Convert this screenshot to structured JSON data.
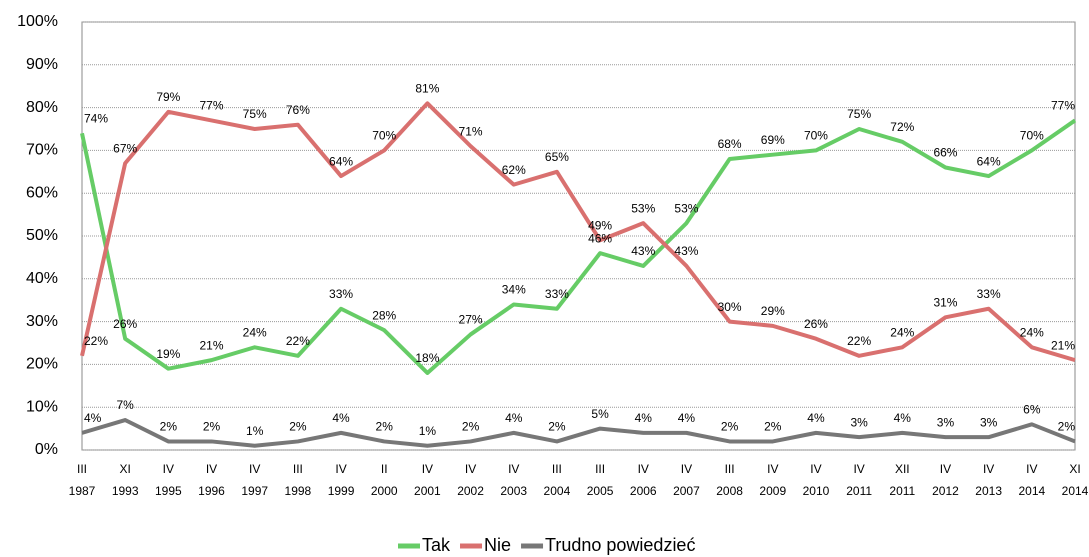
{
  "chart_data": {
    "type": "line",
    "categories": [
      [
        "III",
        "1987"
      ],
      [
        "XI",
        "1993"
      ],
      [
        "IV",
        "1995"
      ],
      [
        "IV",
        "1996"
      ],
      [
        "IV",
        "1997"
      ],
      [
        "III",
        "1998"
      ],
      [
        "IV",
        "1999"
      ],
      [
        "II",
        "2000"
      ],
      [
        "IV",
        "2001"
      ],
      [
        "IV",
        "2002"
      ],
      [
        "IV",
        "2003"
      ],
      [
        "III",
        "2004"
      ],
      [
        "III",
        "2005"
      ],
      [
        "IV",
        "2006"
      ],
      [
        "IV",
        "2007"
      ],
      [
        "III",
        "2008"
      ],
      [
        "IV",
        "2009"
      ],
      [
        "IV",
        "2010"
      ],
      [
        "IV",
        "2011"
      ],
      [
        "XII",
        "2011"
      ],
      [
        "IV",
        "2012"
      ],
      [
        "IV",
        "2013"
      ],
      [
        "IV",
        "2014"
      ],
      [
        "XI",
        "2014"
      ]
    ],
    "series": [
      {
        "name": "Tak",
        "color": "#66cc66",
        "values": [
          74,
          26,
          19,
          21,
          24,
          22,
          33,
          28,
          18,
          27,
          34,
          33,
          46,
          43,
          53,
          68,
          69,
          70,
          75,
          72,
          66,
          64,
          70,
          77
        ],
        "value_labels": [
          "74%",
          "26%",
          "19%",
          "21%",
          "24%",
          "22%",
          "33%",
          "28%",
          "18%",
          "27%",
          "34%",
          "33%",
          "46%",
          "43%",
          "53%",
          "68%",
          "69%",
          "70%",
          "75%",
          "72%",
          "66%",
          "64%",
          "70%",
          "77%"
        ]
      },
      {
        "name": "Nie",
        "color": "#d9706f",
        "values": [
          22,
          67,
          79,
          77,
          75,
          76,
          64,
          70,
          81,
          71,
          62,
          65,
          49,
          53,
          43,
          30,
          29,
          26,
          22,
          24,
          31,
          33,
          24,
          21
        ],
        "value_labels": [
          "22%",
          "67%",
          "79%",
          "77%",
          "75%",
          "76%",
          "64%",
          "70%",
          "81%",
          "71%",
          "62%",
          "65%",
          "49%",
          "53%",
          "43%",
          "30%",
          "29%",
          "26%",
          "22%",
          "24%",
          "31%",
          "33%",
          "24%",
          "21%"
        ]
      },
      {
        "name": "Trudno powiedzieć",
        "color": "#777777",
        "values": [
          4,
          7,
          2,
          2,
          1,
          2,
          4,
          2,
          1,
          2,
          4,
          2,
          5,
          4,
          4,
          2,
          2,
          4,
          3,
          4,
          3,
          3,
          6,
          2
        ],
        "value_labels": [
          "4%",
          "7%",
          "2%",
          "2%",
          "1%",
          "2%",
          "4%",
          "2%",
          "1%",
          "2%",
          "4%",
          "2%",
          "5%",
          "4%",
          "4%",
          "2%",
          "2%",
          "4%",
          "3%",
          "4%",
          "3%",
          "3%",
          "6%",
          "2%"
        ]
      }
    ],
    "ylim": [
      0,
      100
    ],
    "yticks": [
      {
        "value": 0,
        "label": "0%"
      },
      {
        "value": 10,
        "label": "10%"
      },
      {
        "value": 20,
        "label": "20%"
      },
      {
        "value": 30,
        "label": "30%"
      },
      {
        "value": 40,
        "label": "40%"
      },
      {
        "value": 50,
        "label": "50%"
      },
      {
        "value": 60,
        "label": "60%"
      },
      {
        "value": 70,
        "label": "70%"
      },
      {
        "value": 80,
        "label": "80%"
      },
      {
        "value": 90,
        "label": "90%"
      },
      {
        "value": 100,
        "label": "100%"
      }
    ],
    "grid": true,
    "legend": "bottom"
  }
}
